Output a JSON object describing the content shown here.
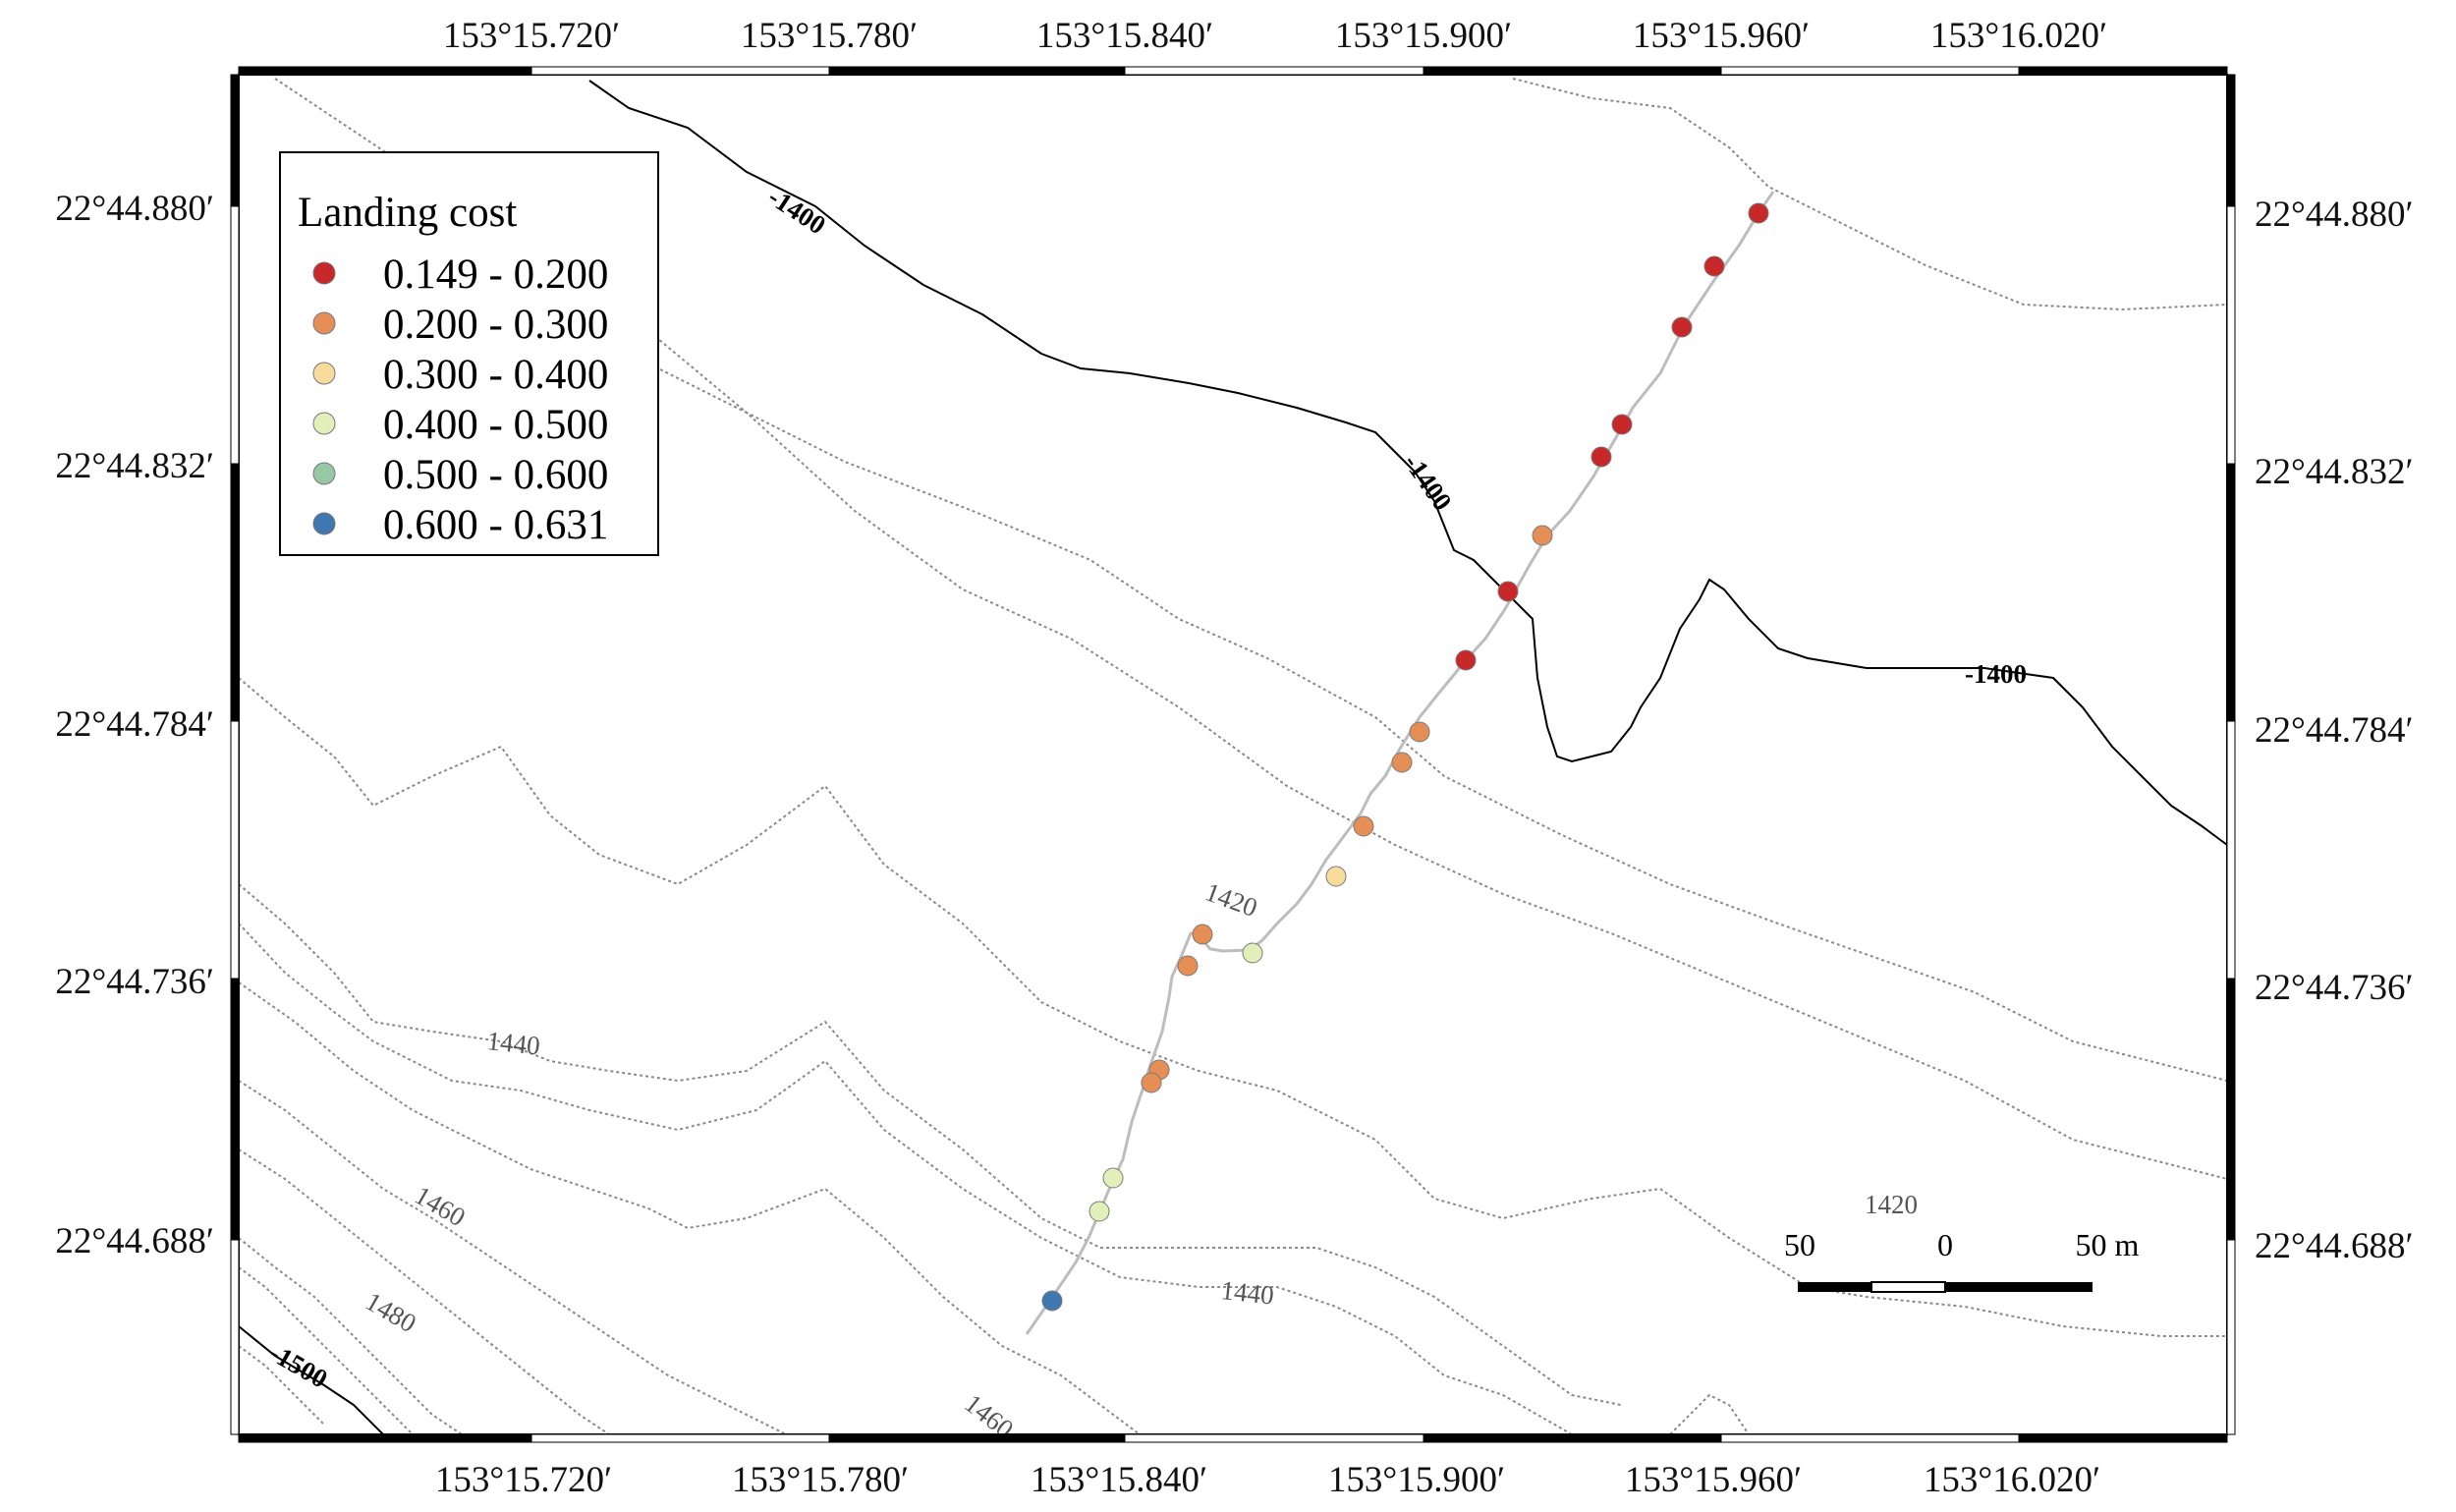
{
  "map": {
    "lon_labels": [
      "153°15.720′",
      "153°15.780′",
      "153°15.840′",
      "153°15.900′",
      "153°15.960′",
      "153°16.020′"
    ],
    "lat_labels": [
      "22°44.880′",
      "22°44.832′",
      "22°44.784′",
      "22°44.736′",
      "22°44.688′"
    ],
    "contour_labels": {
      "c1400": "-1400",
      "c1420": "1420",
      "c1440": "1440",
      "c1460": "1460",
      "c1480": "1480",
      "c1500": "-1500"
    },
    "legend": {
      "title": "Landing cost",
      "items": [
        {
          "label": "0.149 - 0.200",
          "color": "#c8282a"
        },
        {
          "label": "0.200 - 0.300",
          "color": "#e58e55"
        },
        {
          "label": "0.300 - 0.400",
          "color": "#f8dc9e"
        },
        {
          "label": "0.400 - 0.500",
          "color": "#e2efb8"
        },
        {
          "label": "0.500 - 0.600",
          "color": "#96c8a4"
        },
        {
          "label": "0.600 - 0.631",
          "color": "#3f78b0"
        }
      ]
    },
    "scale_bar": {
      "left": "50",
      "center": "0",
      "right": "50 m"
    },
    "track_points": [
      {
        "cost_class": 0
      },
      {
        "cost_class": 0
      },
      {
        "cost_class": 0
      },
      {
        "cost_class": 0
      },
      {
        "cost_class": 0
      },
      {
        "cost_class": 1
      },
      {
        "cost_class": 0
      },
      {
        "cost_class": 0
      },
      {
        "cost_class": 1
      },
      {
        "cost_class": 1
      },
      {
        "cost_class": 1
      },
      {
        "cost_class": 2
      },
      {
        "cost_class": 3
      },
      {
        "cost_class": 1
      },
      {
        "cost_class": 1
      },
      {
        "cost_class": 1
      },
      {
        "cost_class": 1
      },
      {
        "cost_class": 3
      },
      {
        "cost_class": 3
      },
      {
        "cost_class": 5
      }
    ]
  }
}
